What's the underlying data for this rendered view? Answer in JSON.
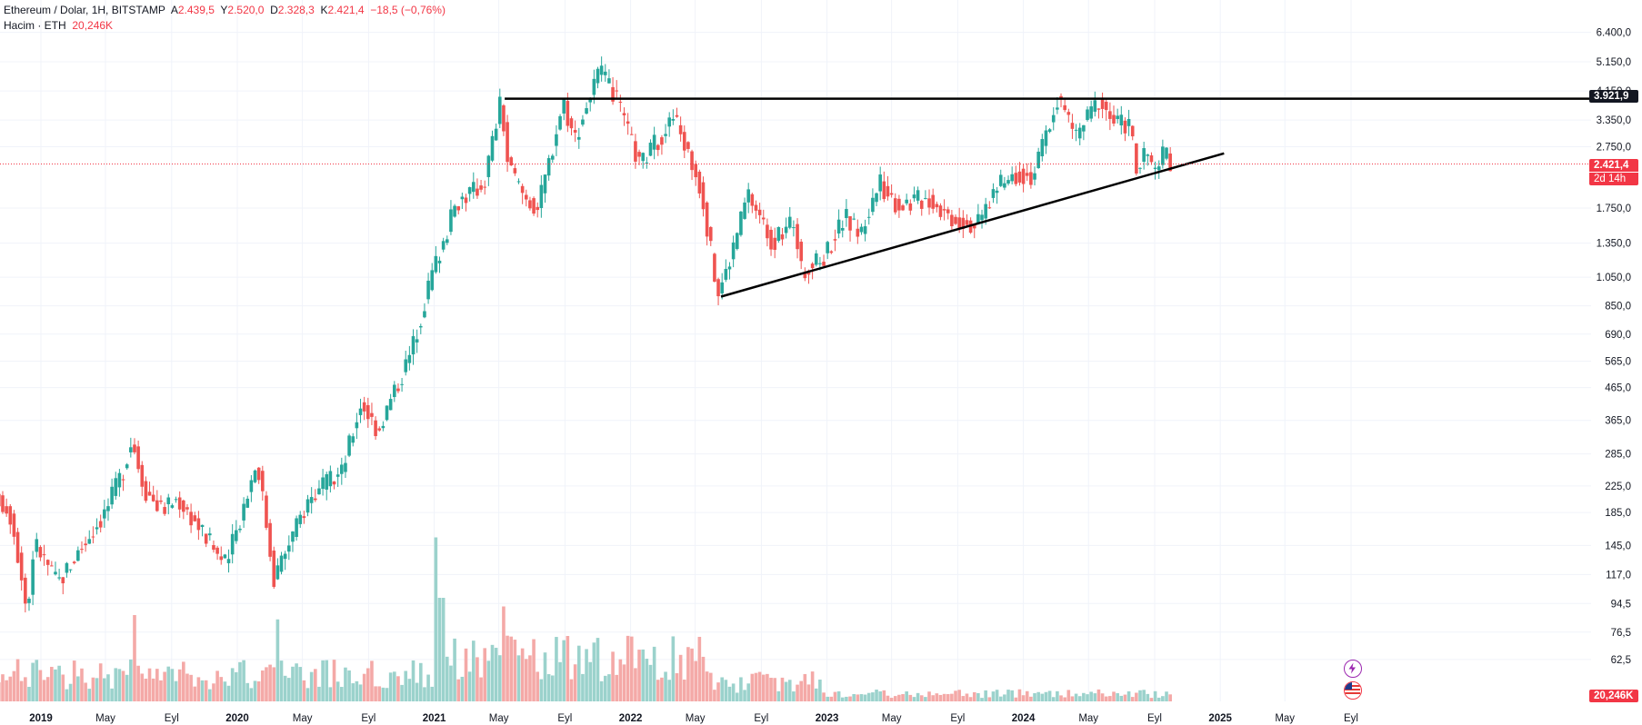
{
  "legend": {
    "symbol": "Ethereum / Dolar, 1H, BITSTAMP",
    "open_label": "A",
    "open": "2.439,5",
    "high_label": "Y",
    "high": "2.520,0",
    "low_label": "D",
    "low": "2.328,3",
    "close_label": "K",
    "close": "2.421,4",
    "change": "−18,5 (−0,76%)",
    "volume_label": "Hacim · ETH",
    "volume": "20,246K"
  },
  "badges": {
    "resistance": "3.921,9",
    "last_price": "2.421,4",
    "countdown": "2d 14h",
    "volume": "20,246K"
  },
  "colors": {
    "up": "#26a69a",
    "down": "#ef5350",
    "up_volume": "#9bd2cc",
    "down_volume": "#f4a9a7",
    "price_line": "#f23645",
    "drawing": "#000000"
  },
  "icons": [
    "lightning-icon",
    "us-flag-icon"
  ],
  "chart_data": {
    "type": "candlestick",
    "scale": "log",
    "ylim": [
      55,
      7200
    ],
    "y_ticks": [
      {
        "v": 62.5,
        "label": "62,5"
      },
      {
        "v": 76.5,
        "label": "76,5"
      },
      {
        "v": 94.5,
        "label": "94,5"
      },
      {
        "v": 117,
        "label": "117,0"
      },
      {
        "v": 145,
        "label": "145,0"
      },
      {
        "v": 185,
        "label": "185,0"
      },
      {
        "v": 225,
        "label": "225,0"
      },
      {
        "v": 285,
        "label": "285,0"
      },
      {
        "v": 365,
        "label": "365,0"
      },
      {
        "v": 465,
        "label": "465,0"
      },
      {
        "v": 565,
        "label": "565,0"
      },
      {
        "v": 690,
        "label": "690,0"
      },
      {
        "v": 850,
        "label": "850,0"
      },
      {
        "v": 1050,
        "label": "1.050,0"
      },
      {
        "v": 1350,
        "label": "1.350,0"
      },
      {
        "v": 1750,
        "label": "1.750,0"
      },
      {
        "v": 2750,
        "label": "2.750,0"
      },
      {
        "v": 3350,
        "label": "3.350,0"
      },
      {
        "v": 4150,
        "label": "4.150,0"
      },
      {
        "v": 5150,
        "label": "5.150,0"
      },
      {
        "v": 6400,
        "label": "6.400,0"
      }
    ],
    "x_ticks": [
      {
        "date": "2019-01-01",
        "label": "2019",
        "bold": true
      },
      {
        "date": "2019-05-01",
        "label": "May",
        "bold": false
      },
      {
        "date": "2019-09-01",
        "label": "Eyl",
        "bold": false
      },
      {
        "date": "2020-01-01",
        "label": "2020",
        "bold": true
      },
      {
        "date": "2020-05-01",
        "label": "May",
        "bold": false
      },
      {
        "date": "2020-09-01",
        "label": "Eyl",
        "bold": false
      },
      {
        "date": "2021-01-01",
        "label": "2021",
        "bold": true
      },
      {
        "date": "2021-05-01",
        "label": "May",
        "bold": false
      },
      {
        "date": "2021-09-01",
        "label": "Eyl",
        "bold": false
      },
      {
        "date": "2022-01-01",
        "label": "2022",
        "bold": true
      },
      {
        "date": "2022-05-01",
        "label": "May",
        "bold": false
      },
      {
        "date": "2022-09-01",
        "label": "Eyl",
        "bold": false
      },
      {
        "date": "2023-01-01",
        "label": "2023",
        "bold": true
      },
      {
        "date": "2023-05-01",
        "label": "May",
        "bold": false
      },
      {
        "date": "2023-09-01",
        "label": "Eyl",
        "bold": false
      },
      {
        "date": "2024-01-01",
        "label": "2024",
        "bold": true
      },
      {
        "date": "2024-05-01",
        "label": "May",
        "bold": false
      },
      {
        "date": "2024-09-01",
        "label": "Eyl",
        "bold": false
      },
      {
        "date": "2025-01-01",
        "label": "2025",
        "bold": true
      },
      {
        "date": "2025-05-01",
        "label": "May",
        "bold": false
      },
      {
        "date": "2025-09-01",
        "label": "Eyl",
        "bold": false
      }
    ],
    "price_path": [
      [
        "2018-10-08",
        222
      ],
      [
        "2018-11-15",
        180
      ],
      [
        "2018-12-14",
        87
      ],
      [
        "2018-12-26",
        150
      ],
      [
        "2019-02-08",
        110
      ],
      [
        "2019-03-20",
        140
      ],
      [
        "2019-05-10",
        190
      ],
      [
        "2019-06-10",
        255
      ],
      [
        "2019-06-26",
        320
      ],
      [
        "2019-07-20",
        220
      ],
      [
        "2019-08-20",
        190
      ],
      [
        "2019-09-20",
        205
      ],
      [
        "2019-10-20",
        175
      ],
      [
        "2019-12-18",
        125
      ],
      [
        "2020-02-14",
        275
      ],
      [
        "2020-03-16",
        115
      ],
      [
        "2020-05-20",
        205
      ],
      [
        "2020-07-20",
        250
      ],
      [
        "2020-08-25",
        420
      ],
      [
        "2020-09-25",
        340
      ],
      [
        "2020-11-25",
        600
      ],
      [
        "2021-01-05",
        1100
      ],
      [
        "2021-02-20",
        1850
      ],
      [
        "2021-04-10",
        2100
      ],
      [
        "2021-05-12",
        3900
      ],
      [
        "2021-05-25",
        2400
      ],
      [
        "2021-06-25",
        1900
      ],
      [
        "2021-07-20",
        1750
      ],
      [
        "2021-09-05",
        3900
      ],
      [
        "2021-09-25",
        2900
      ],
      [
        "2021-11-10",
        4800
      ],
      [
        "2021-12-10",
        4000
      ],
      [
        "2022-01-25",
        2400
      ],
      [
        "2022-03-30",
        3450
      ],
      [
        "2022-05-20",
        2000
      ],
      [
        "2022-06-18",
        930
      ],
      [
        "2022-07-05",
        1100
      ],
      [
        "2022-08-14",
        1950
      ],
      [
        "2022-09-30",
        1350
      ],
      [
        "2022-11-08",
        1600
      ],
      [
        "2022-11-21",
        1100
      ],
      [
        "2022-12-30",
        1200
      ],
      [
        "2023-02-10",
        1650
      ],
      [
        "2023-03-11",
        1450
      ],
      [
        "2023-04-15",
        2100
      ],
      [
        "2023-05-20",
        1800
      ],
      [
        "2023-07-15",
        1900
      ],
      [
        "2023-08-25",
        1650
      ],
      [
        "2023-10-15",
        1550
      ],
      [
        "2023-11-15",
        2000
      ],
      [
        "2023-12-30",
        2300
      ],
      [
        "2024-01-25",
        2200
      ],
      [
        "2024-03-12",
        3950
      ],
      [
        "2024-04-15",
        3000
      ],
      [
        "2024-05-27",
        3900
      ],
      [
        "2024-06-25",
        3300
      ],
      [
        "2024-07-25",
        3250
      ],
      [
        "2024-08-05",
        2300
      ],
      [
        "2024-08-25",
        2650
      ],
      [
        "2024-09-06",
        2250
      ],
      [
        "2024-09-27",
        2650
      ],
      [
        "2024-10-06",
        2421.4
      ]
    ],
    "volume_ylim": [
      0,
      200
    ],
    "volume_spikes": [
      [
        "2021-01-06",
        190
      ],
      [
        "2021-01-15",
        120
      ],
      [
        "2021-05-12",
        110
      ],
      [
        "2020-03-16",
        95
      ],
      [
        "2019-06-25",
        100
      ]
    ],
    "resistance": {
      "price": 3921.9,
      "x_start": "2021-05-12",
      "x_end": "2025-11-01"
    },
    "support_line": {
      "x1": "2022-06-18",
      "y1": 910,
      "x2": "2025-01-08",
      "y2": 2620
    },
    "last_price": 2421.4
  }
}
